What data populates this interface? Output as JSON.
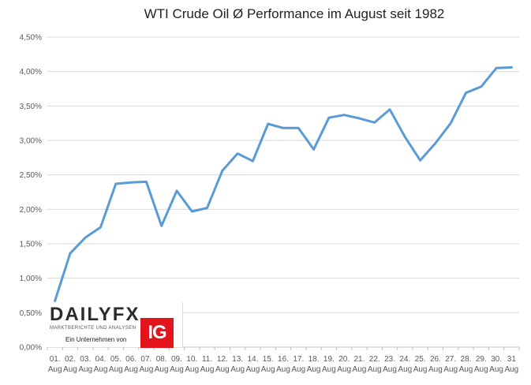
{
  "chart_data": {
    "type": "line",
    "title": "WTI Crude Oil Ø Performance im August seit 1982",
    "xlabel": "",
    "ylabel": "",
    "ylim": [
      0,
      4.5
    ],
    "yticks": [
      0,
      0.5,
      1.0,
      1.5,
      2.0,
      2.5,
      3.0,
      3.5,
      4.0,
      4.5
    ],
    "ytick_labels": [
      "0,00%",
      "0,50%",
      "1,00%",
      "1,50%",
      "2,00%",
      "2,50%",
      "3,00%",
      "3,50%",
      "4,00%",
      "4,50%"
    ],
    "grid": true,
    "legend": "none",
    "categories": [
      [
        "01.",
        "Aug"
      ],
      [
        "02.",
        "Aug"
      ],
      [
        "03.",
        "Aug"
      ],
      [
        "04.",
        "Aug"
      ],
      [
        "05.",
        "Aug"
      ],
      [
        "06.",
        "Aug"
      ],
      [
        "07.",
        "Aug"
      ],
      [
        "08.",
        "Aug"
      ],
      [
        "09.",
        "Aug"
      ],
      [
        "10.",
        "Aug"
      ],
      [
        "11.",
        "Aug"
      ],
      [
        "12.",
        "Aug"
      ],
      [
        "13.",
        "Aug"
      ],
      [
        "14.",
        "Aug"
      ],
      [
        "15.",
        "Aug"
      ],
      [
        "16.",
        "Aug"
      ],
      [
        "17.",
        "Aug"
      ],
      [
        "18.",
        "Aug"
      ],
      [
        "19.",
        "Aug"
      ],
      [
        "20.",
        "Aug"
      ],
      [
        "21.",
        "Aug"
      ],
      [
        "22.",
        "Aug"
      ],
      [
        "23.",
        "Aug"
      ],
      [
        "24.",
        "Aug"
      ],
      [
        "25.",
        "Aug"
      ],
      [
        "26.",
        "Aug"
      ],
      [
        "27.",
        "Aug"
      ],
      [
        "28.",
        "Aug"
      ],
      [
        "29.",
        "Aug"
      ],
      [
        "30.",
        "Aug"
      ],
      [
        "31",
        "Aug"
      ]
    ],
    "series": [
      {
        "color": "#5b9bd5",
        "values": [
          0.67,
          1.36,
          1.59,
          1.74,
          2.37,
          2.39,
          2.4,
          1.76,
          2.27,
          1.97,
          2.02,
          2.56,
          2.81,
          2.7,
          3.24,
          3.18,
          3.18,
          2.87,
          3.33,
          3.37,
          3.32,
          3.26,
          3.45,
          3.05,
          2.71,
          2.96,
          3.25,
          3.69,
          3.78,
          4.05,
          4.06
        ]
      }
    ]
  },
  "logo": {
    "brand": "DAILYFX",
    "tagline": "MARKTBERICHTE UND ANALYSEN",
    "company_text": "Ein Unternehmen von",
    "badge": "IG"
  },
  "colors": {
    "brand_accent": "#e3141b",
    "series": "#5b9bd5"
  }
}
